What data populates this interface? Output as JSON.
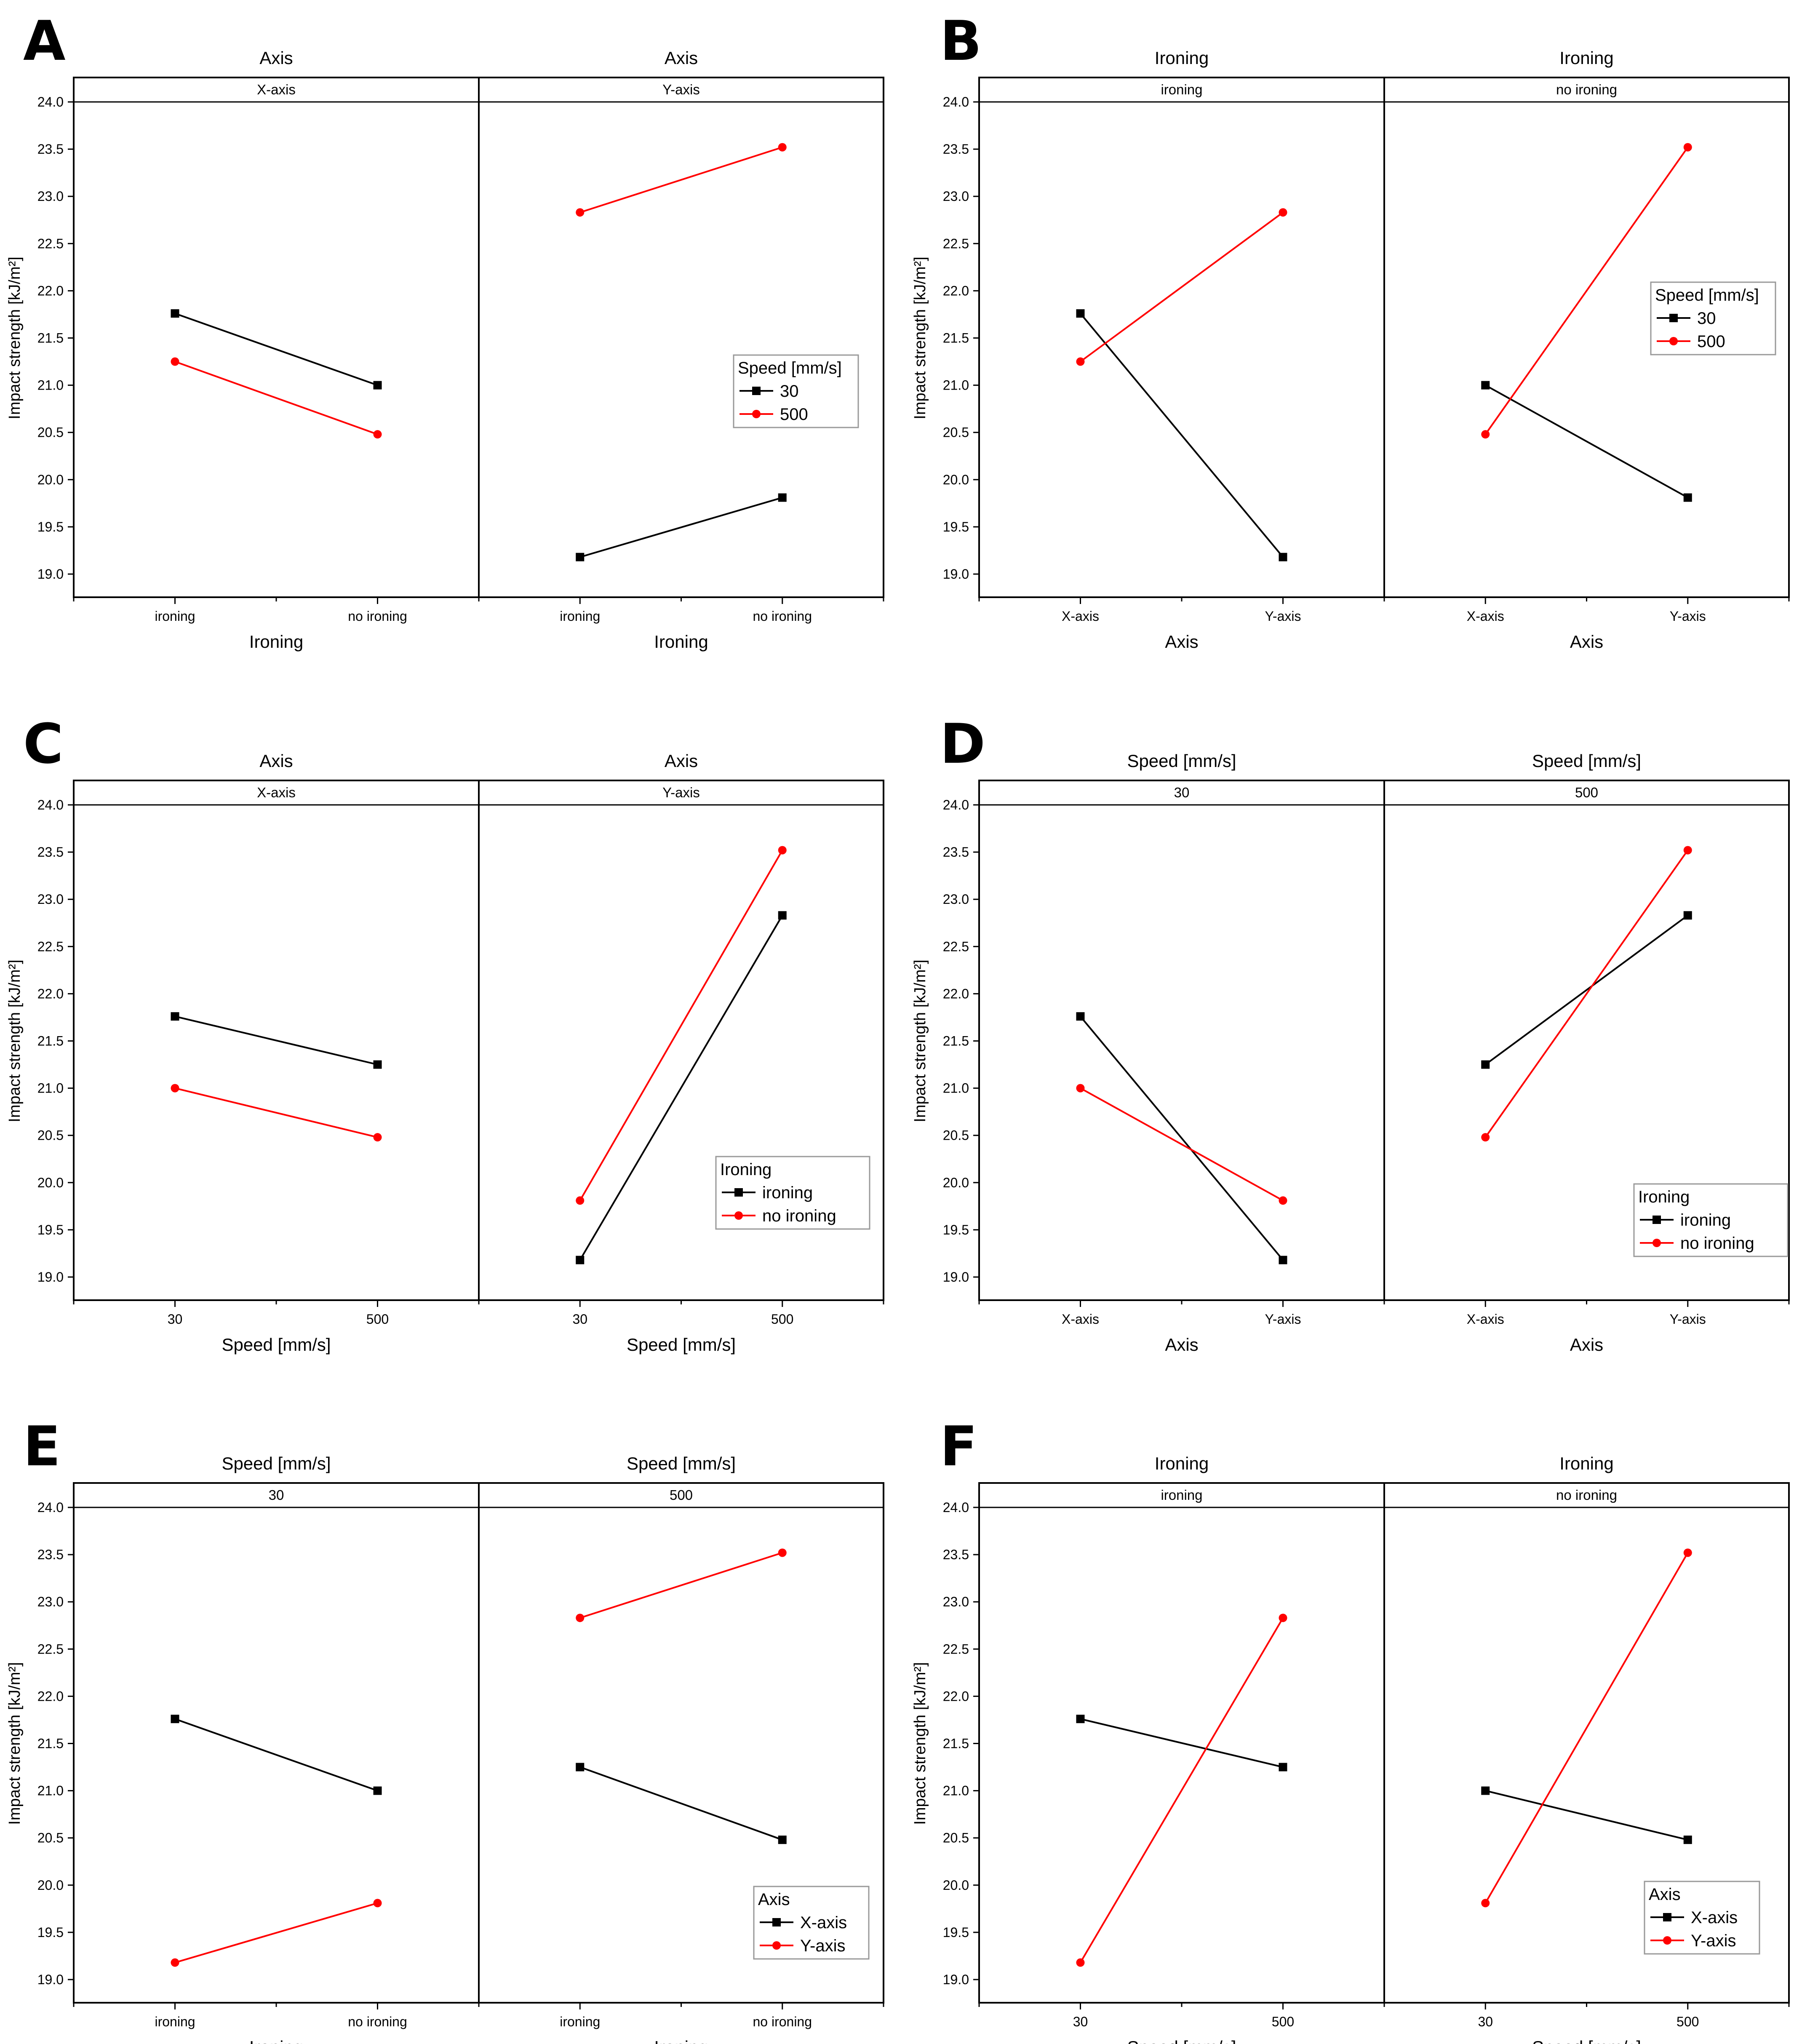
{
  "chart_data": [
    {
      "panel": "A",
      "type": "line",
      "facet_title": "Axis",
      "facets": [
        "X-axis",
        "Y-axis"
      ],
      "categories": [
        "ironing",
        "no ironing"
      ],
      "xlabel": "Ironing",
      "ylabel": "Impact strength [kJ/m²]",
      "ylim": [
        19.0,
        24.0
      ],
      "yticks": [
        "19.0",
        "19.5",
        "20.0",
        "20.5",
        "21.0",
        "21.5",
        "22.0",
        "22.5",
        "23.0",
        "23.5",
        "24.0"
      ],
      "legend": {
        "title": "Speed [mm/s]",
        "position": "right"
      },
      "series": [
        {
          "name": "30",
          "color": "#000000",
          "marker": "square",
          "values": [
            [
              21.76,
              21.0
            ],
            [
              19.18,
              19.81
            ]
          ]
        },
        {
          "name": "500",
          "color": "#ff0000",
          "marker": "circle",
          "values": [
            [
              21.25,
              20.48
            ],
            [
              22.83,
              23.52
            ]
          ]
        }
      ]
    },
    {
      "panel": "B",
      "type": "line",
      "facet_title": "Ironing",
      "facets": [
        "ironing",
        "no ironing"
      ],
      "categories": [
        "X-axis",
        "Y-axis"
      ],
      "xlabel": "Axis",
      "ylabel": "Impact strength [kJ/m²]",
      "ylim": [
        19.0,
        24.0
      ],
      "yticks": [
        "19.0",
        "19.5",
        "20.0",
        "20.5",
        "21.0",
        "21.5",
        "22.0",
        "22.5",
        "23.0",
        "23.5",
        "24.0"
      ],
      "legend": {
        "title": "Speed [mm/s]",
        "position": "right"
      },
      "series": [
        {
          "name": "30",
          "color": "#000000",
          "marker": "square",
          "values": [
            [
              21.76,
              19.18
            ],
            [
              21.0,
              19.81
            ]
          ]
        },
        {
          "name": "500",
          "color": "#ff0000",
          "marker": "circle",
          "values": [
            [
              21.25,
              22.83
            ],
            [
              20.48,
              23.52
            ]
          ]
        }
      ]
    },
    {
      "panel": "C",
      "type": "line",
      "facet_title": "Axis",
      "facets": [
        "X-axis",
        "Y-axis"
      ],
      "categories": [
        "30",
        "500"
      ],
      "xlabel": "Speed [mm/s]",
      "ylabel": "Impact strength [kJ/m²]",
      "ylim": [
        19.0,
        24.0
      ],
      "yticks": [
        "19.0",
        "19.5",
        "20.0",
        "20.5",
        "21.0",
        "21.5",
        "22.0",
        "22.5",
        "23.0",
        "23.5",
        "24.0"
      ],
      "legend": {
        "title": "Ironing",
        "position": "bottom-right"
      },
      "series": [
        {
          "name": "ironing",
          "color": "#000000",
          "marker": "square",
          "values": [
            [
              21.76,
              21.25
            ],
            [
              19.18,
              22.83
            ]
          ]
        },
        {
          "name": "no ironing",
          "color": "#ff0000",
          "marker": "circle",
          "values": [
            [
              21.0,
              20.48
            ],
            [
              19.81,
              23.52
            ]
          ]
        }
      ]
    },
    {
      "panel": "D",
      "type": "line",
      "facet_title": "Speed [mm/s]",
      "facets": [
        "30",
        "500"
      ],
      "categories": [
        "X-axis",
        "Y-axis"
      ],
      "xlabel": "Axis",
      "ylabel": "Impact strength [kJ/m²]",
      "ylim": [
        19.0,
        24.0
      ],
      "yticks": [
        "19.0",
        "19.5",
        "20.0",
        "20.5",
        "21.0",
        "21.5",
        "22.0",
        "22.5",
        "23.0",
        "23.5",
        "24.0"
      ],
      "legend": {
        "title": "Ironing",
        "position": "bottom-right"
      },
      "series": [
        {
          "name": "ironing",
          "color": "#000000",
          "marker": "square",
          "values": [
            [
              21.76,
              19.18
            ],
            [
              21.25,
              22.83
            ]
          ]
        },
        {
          "name": "no ironing",
          "color": "#ff0000",
          "marker": "circle",
          "values": [
            [
              21.0,
              19.81
            ],
            [
              20.48,
              23.52
            ]
          ]
        }
      ]
    },
    {
      "panel": "E",
      "type": "line",
      "facet_title": "Speed [mm/s]",
      "facets": [
        "30",
        "500"
      ],
      "categories": [
        "ironing",
        "no ironing"
      ],
      "xlabel": "Ironing",
      "ylabel": "Impact strength [kJ/m²]",
      "ylim": [
        19.0,
        24.0
      ],
      "yticks": [
        "19.0",
        "19.5",
        "20.0",
        "20.5",
        "21.0",
        "21.5",
        "22.0",
        "22.5",
        "23.0",
        "23.5",
        "24.0"
      ],
      "legend": {
        "title": "Axis",
        "position": "bottom-right"
      },
      "series": [
        {
          "name": "X-axis",
          "color": "#000000",
          "marker": "square",
          "values": [
            [
              21.76,
              21.0
            ],
            [
              21.25,
              20.48
            ]
          ]
        },
        {
          "name": "Y-axis",
          "color": "#ff0000",
          "marker": "circle",
          "values": [
            [
              19.18,
              19.81
            ],
            [
              22.83,
              23.52
            ]
          ]
        }
      ]
    },
    {
      "panel": "F",
      "type": "line",
      "facet_title": "Ironing",
      "facets": [
        "ironing",
        "no ironing"
      ],
      "categories": [
        "30",
        "500"
      ],
      "xlabel": "Speed [mm/s]",
      "ylabel": "Impact strength [kJ/m²]",
      "ylim": [
        19.0,
        24.0
      ],
      "yticks": [
        "19.0",
        "19.5",
        "20.0",
        "20.5",
        "21.0",
        "21.5",
        "22.0",
        "22.5",
        "23.0",
        "23.5",
        "24.0"
      ],
      "legend": {
        "title": "Axis",
        "position": "bottom-right"
      },
      "series": [
        {
          "name": "X-axis",
          "color": "#000000",
          "marker": "square",
          "values": [
            [
              21.76,
              21.25
            ],
            [
              21.0,
              20.48
            ]
          ]
        },
        {
          "name": "Y-axis",
          "color": "#ff0000",
          "marker": "circle",
          "values": [
            [
              19.18,
              22.83
            ],
            [
              19.81,
              23.52
            ]
          ]
        }
      ]
    }
  ]
}
